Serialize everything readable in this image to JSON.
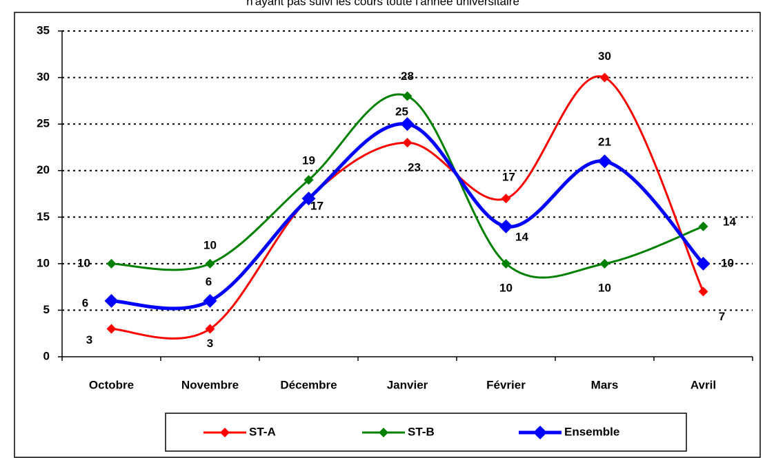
{
  "chart_data": {
    "type": "line",
    "title": "n'ayant pas suivi les cours toute l'année universitaire",
    "categories": [
      "Octobre",
      "Novembre",
      "Décembre",
      "Janvier",
      "Février",
      "Mars",
      "Avril"
    ],
    "series": [
      {
        "name": "ST-A",
        "color": "#ff0000",
        "values": [
          3,
          3,
          17,
          23,
          17,
          30,
          7
        ]
      },
      {
        "name": "ST-B",
        "color": "#008000",
        "values": [
          10,
          10,
          19,
          28,
          10,
          10,
          14
        ]
      },
      {
        "name": "Ensemble",
        "color": "#0000ff",
        "values": [
          6,
          6,
          17,
          25,
          14,
          21,
          10
        ]
      }
    ],
    "ylim": [
      0,
      35
    ],
    "yticks": [
      0,
      5,
      10,
      15,
      20,
      25,
      30,
      35
    ],
    "grid": true,
    "legend": "bottom"
  }
}
